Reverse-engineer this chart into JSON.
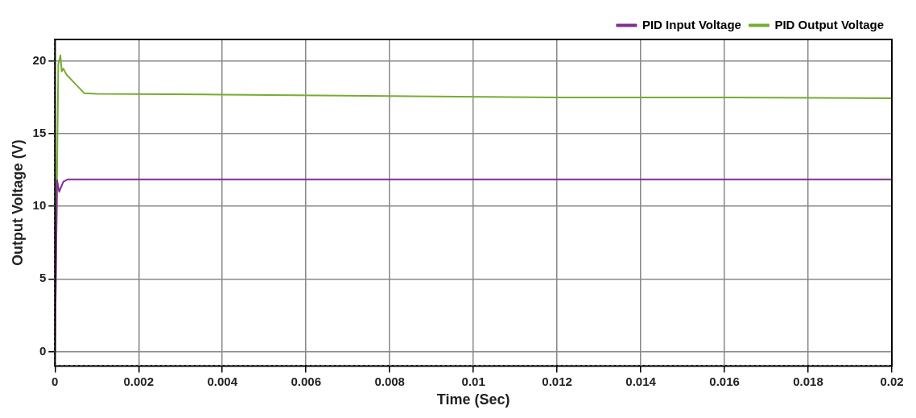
{
  "chart_data": {
    "type": "line",
    "xlabel": "Time (Sec)",
    "ylabel": "Output Voltage (V)",
    "xlim": [
      0,
      0.02
    ],
    "xticks": [
      0,
      0.002,
      0.004,
      0.006,
      0.008,
      0.01,
      0.012,
      0.014,
      0.016,
      0.018,
      0.02
    ],
    "ylim": [
      -1,
      21.5
    ],
    "yticks": [
      0,
      5,
      10,
      15,
      20
    ],
    "grid": true,
    "legend": "top right",
    "line_style": "solid",
    "marker": "none",
    "series": [
      {
        "name": "PID Input Voltage",
        "color": "#7e2f8e",
        "x": [
          0,
          5e-05,
          0.0001,
          0.0002,
          0.0003,
          0.005,
          0.01,
          0.015,
          0.02
        ],
        "values": [
          0,
          11.8,
          11.0,
          11.7,
          11.85,
          11.85,
          11.85,
          11.85,
          11.85
        ]
      },
      {
        "name": "PID Output Voltage",
        "color": "#77ac30",
        "x": [
          0,
          8e-05,
          0.00013,
          0.00016,
          0.0002,
          0.00025,
          0.0003,
          0.0005,
          0.0007,
          0.001,
          0.004,
          0.008,
          0.012,
          0.016,
          0.02
        ],
        "values": [
          0,
          19.8,
          20.4,
          19.3,
          19.5,
          19.2,
          19.0,
          18.4,
          17.8,
          17.75,
          17.7,
          17.6,
          17.5,
          17.5,
          17.45
        ]
      }
    ]
  }
}
